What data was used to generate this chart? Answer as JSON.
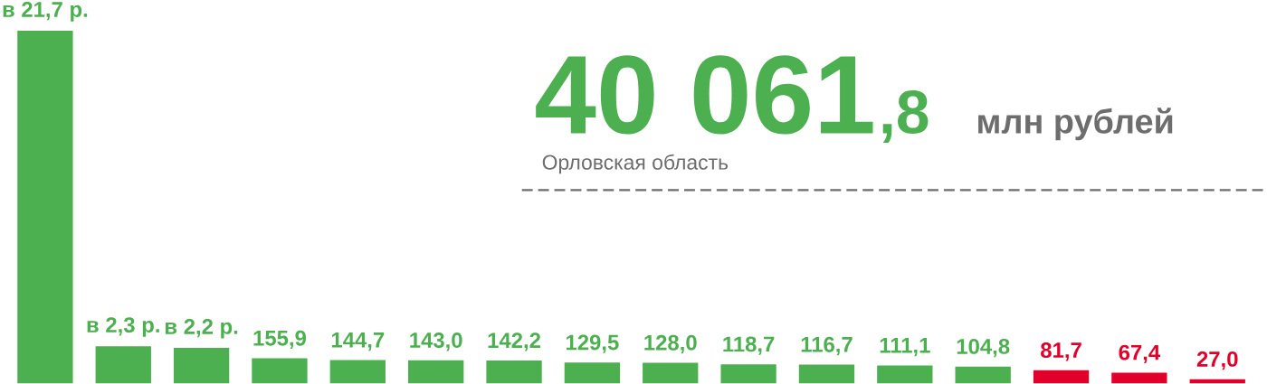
{
  "chart_data": {
    "type": "bar",
    "categories": [
      null,
      null,
      null,
      null,
      null,
      null,
      null,
      null,
      null,
      null,
      null,
      null,
      null,
      null,
      null,
      null
    ],
    "values": [
      2170,
      230,
      220,
      155.9,
      144.7,
      143.0,
      142.2,
      129.5,
      128.0,
      118.7,
      116.7,
      111.1,
      104.8,
      81.7,
      67.4,
      27.0
    ],
    "colors": [
      "#4caf50",
      "#4caf50",
      "#4caf50",
      "#4caf50",
      "#4caf50",
      "#4caf50",
      "#4caf50",
      "#4caf50",
      "#4caf50",
      "#4caf50",
      "#4caf50",
      "#4caf50",
      "#4caf50",
      "#e2002a",
      "#e2002a",
      "#e2002a"
    ],
    "value_labels": [
      "в 21,7 р.",
      "в 2,3 р.",
      "в 2,2 р.",
      "155,9",
      "144,7",
      "143,0",
      "142,2",
      "129,5",
      "128,0",
      "118,7",
      "116,7",
      "111,1",
      "104,8",
      "81,7",
      "67,4",
      "27,0"
    ],
    "annotations": [
      "40 061",
      ",8",
      "млн рублей",
      "Орловская область"
    ],
    "ref_lines": [
      {
        "axis": "y",
        "value": 1190,
        "color": "#6d6d6d",
        "line_style": "dashed"
      }
    ]
  }
}
